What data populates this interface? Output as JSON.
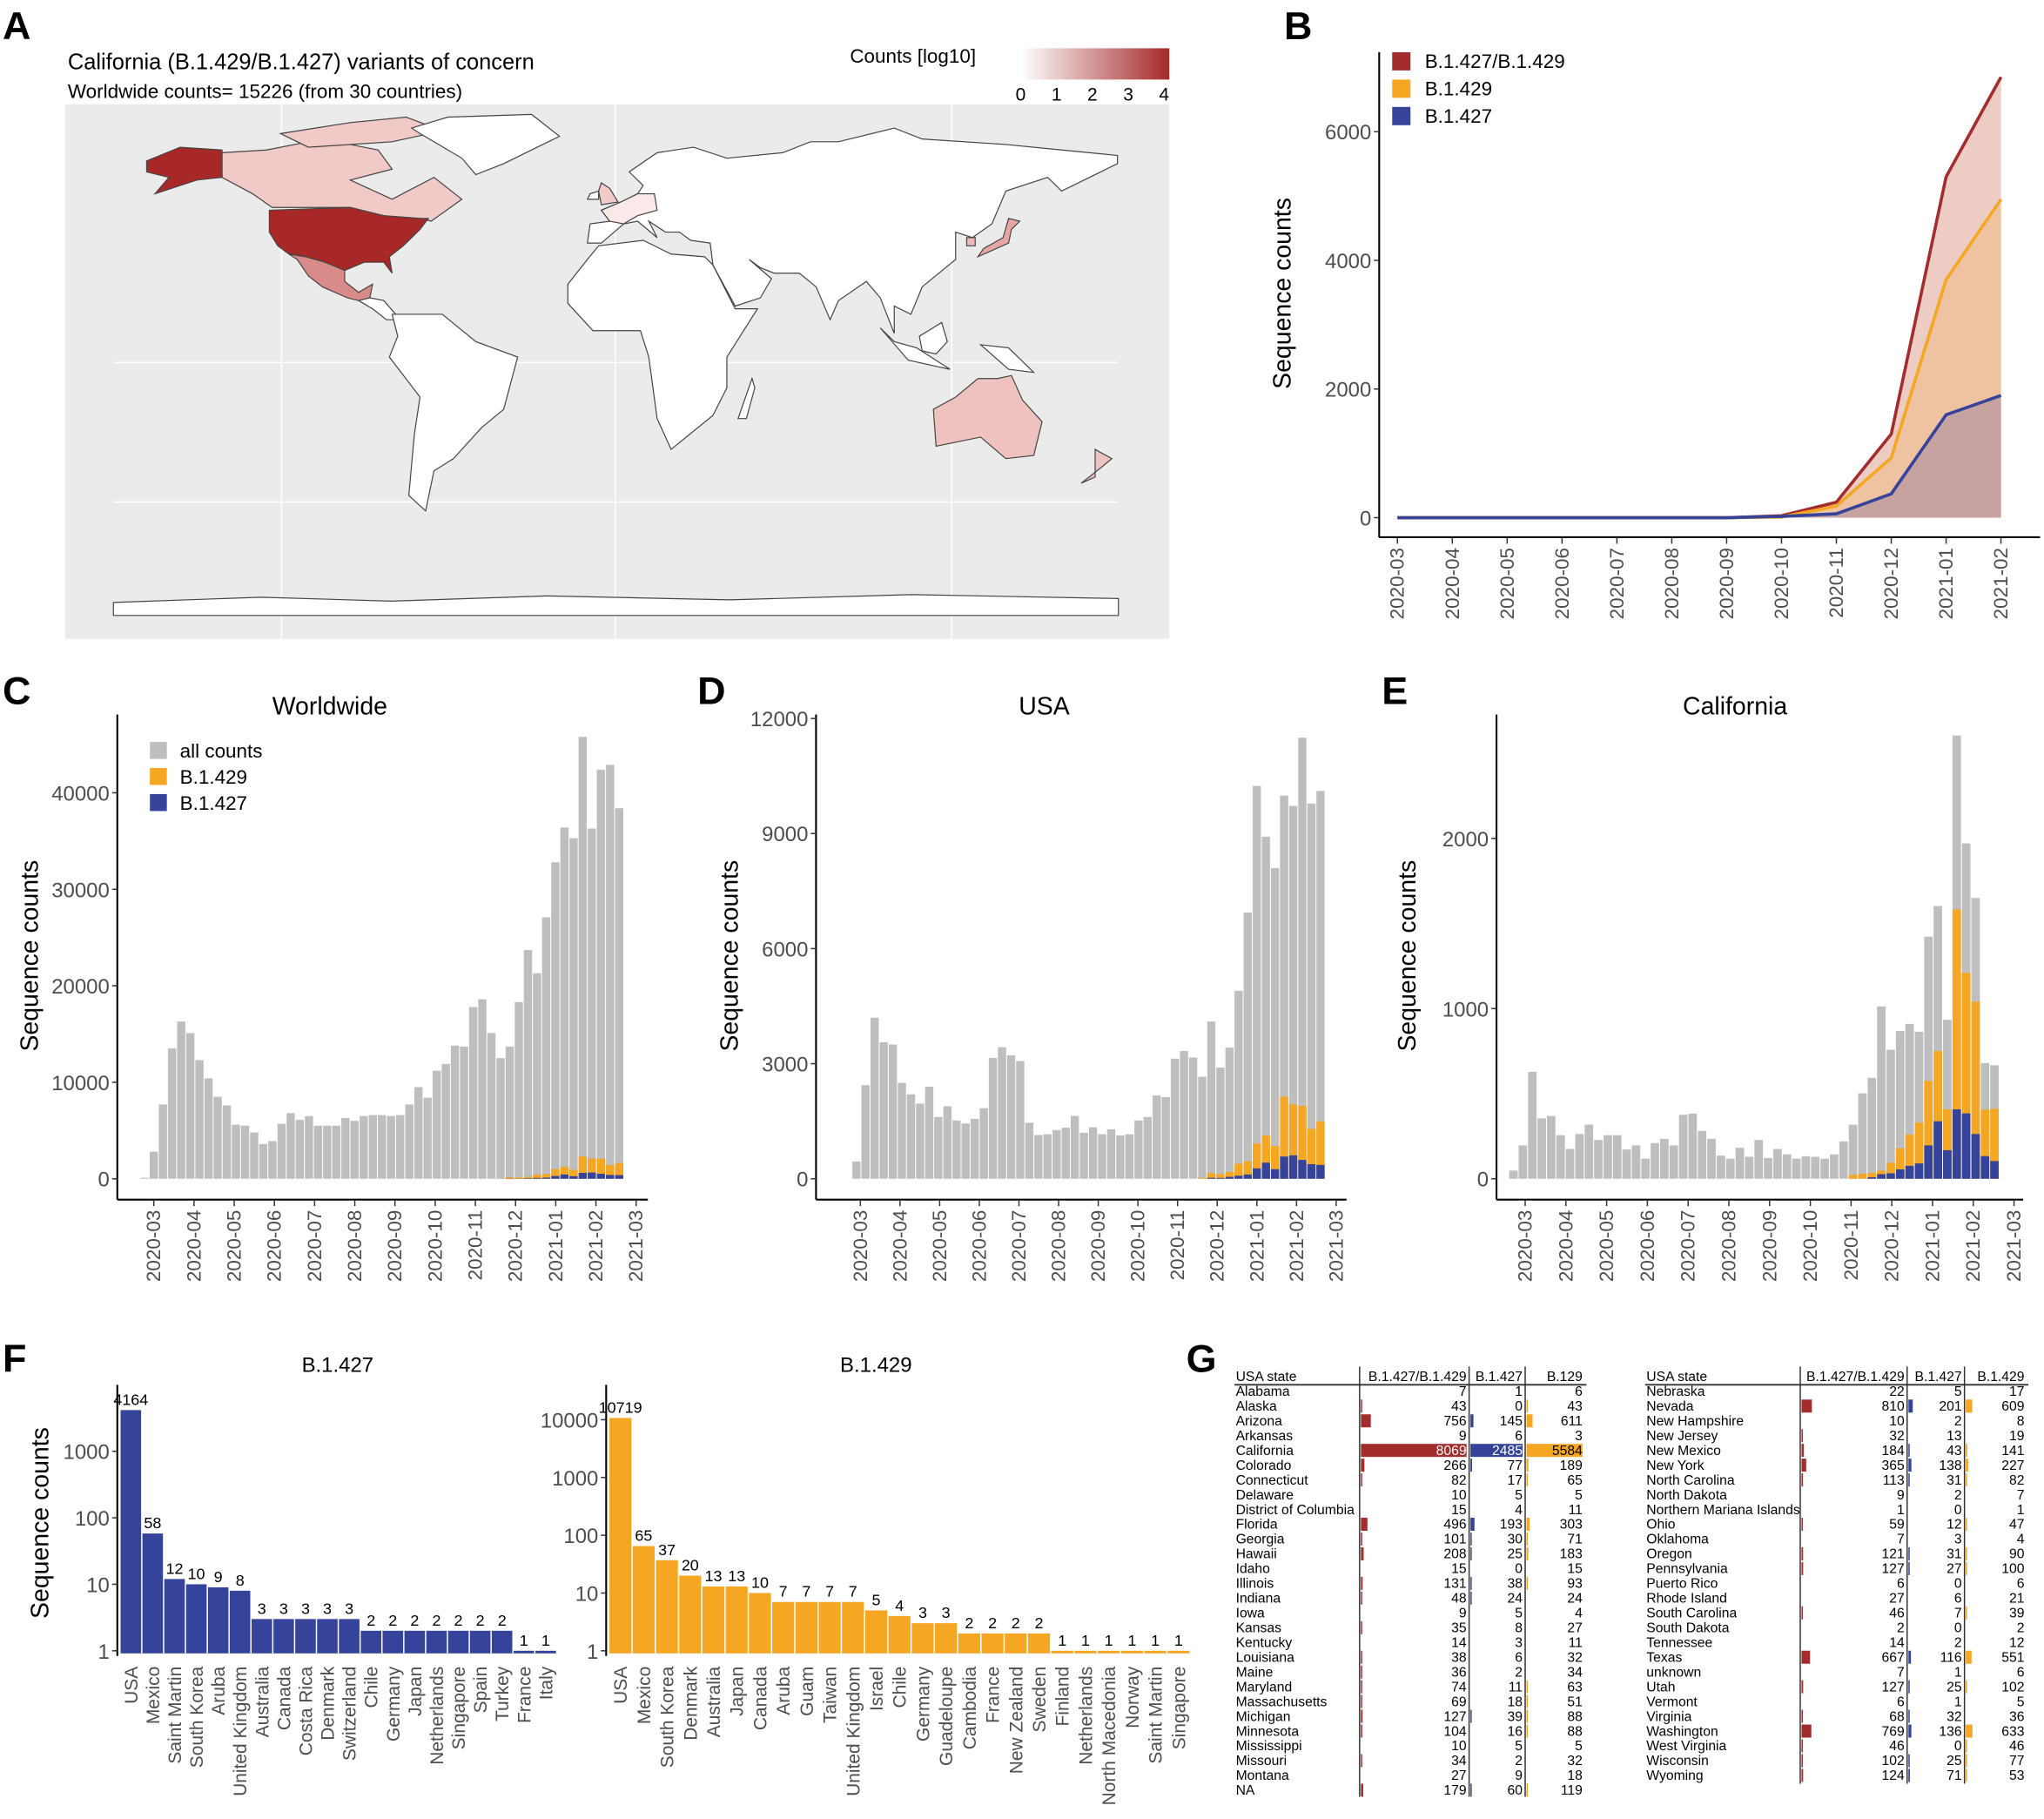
{
  "panel_labels": [
    "A",
    "B",
    "C",
    "D",
    "E",
    "F",
    "G"
  ],
  "colors": {
    "all_counts": "#bebebe",
    "b1429": "#f5a623",
    "b1427": "#35449a",
    "combined": "#a32d2d",
    "map_bg": "#ebebeb"
  },
  "panel_a": {
    "title": "California (B.1.429/B.1.427) variants of concern",
    "subtitle": "Worldwide counts=  15226 (from 30 countries)",
    "legend_title": "Counts [log10]",
    "legend_ticks": [
      "0",
      "1",
      "2",
      "3",
      "4"
    ],
    "legend_colors": [
      "#ffffff",
      "#a52a2a"
    ],
    "fills": {
      "USA": "#a82828",
      "Canada": "#f1c9c7",
      "Mexico": "#d98b89",
      "Australia": "#efc2c0",
      "Japan": "#e7a6a4",
      "United Kingdom": "#f1cbca",
      "South Korea": "#eeb9b7",
      "Europe": "#fbe9e9",
      "other": "#ffffff"
    }
  },
  "chart_data": [
    {
      "panel": "B",
      "type": "area",
      "x": [
        "2020-03",
        "2020-04",
        "2020-05",
        "2020-06",
        "2020-07",
        "2020-08",
        "2020-09",
        "2020-10",
        "2020-11",
        "2020-12",
        "2021-01",
        "2021-02"
      ],
      "ylabel": "Sequence counts",
      "yticks": [
        0,
        2000,
        4000,
        6000
      ],
      "ylim": [
        0,
        7000
      ],
      "legend": "top-left",
      "series": [
        {
          "name": "B.1.427/B.1.429",
          "color": "#a32d2d",
          "values": [
            0,
            0,
            0,
            0,
            0,
            0,
            0,
            30,
            240,
            1300,
            5300,
            6850
          ]
        },
        {
          "name": "B.1.429",
          "color": "#f5a623",
          "values": [
            0,
            0,
            0,
            0,
            0,
            0,
            0,
            10,
            180,
            930,
            3700,
            4950
          ]
        },
        {
          "name": "B.1.427",
          "color": "#35449a",
          "values": [
            0,
            0,
            0,
            0,
            0,
            0,
            0,
            20,
            60,
            370,
            1600,
            1900
          ]
        }
      ]
    },
    {
      "panel": "C",
      "type": "bar",
      "title": "Worldwide",
      "ylabel": "Sequence counts",
      "legend": "top-left",
      "x_ticks": [
        "2020-03",
        "2020-04",
        "2020-05",
        "2020-06",
        "2020-07",
        "2020-08",
        "2020-09",
        "2020-10",
        "2020-11",
        "2020-12",
        "2021-01",
        "2021-02",
        "2021-03"
      ],
      "yticks": [
        0,
        10000,
        20000,
        30000,
        40000
      ],
      "series": [
        {
          "name": "all counts",
          "values": [
            100,
            2800,
            7700,
            13500,
            16300,
            15100,
            12300,
            10400,
            8500,
            7600,
            5600,
            5500,
            4800,
            3600,
            3900,
            5700,
            6800,
            6100,
            6500,
            5500,
            5500,
            5500,
            6300,
            6000,
            6500,
            6600,
            6600,
            6500,
            6600,
            7700,
            9500,
            8400,
            11200,
            11900,
            13800,
            13700,
            17800,
            18600,
            15100,
            12500,
            13700,
            18300,
            23700,
            21300,
            27100,
            32800,
            36400,
            35300,
            45800,
            36300,
            42400,
            42900,
            38400
          ]
        },
        {
          "name": "B.1.429",
          "values": [
            0,
            0,
            0,
            0,
            0,
            0,
            0,
            0,
            0,
            0,
            0,
            0,
            0,
            0,
            0,
            0,
            0,
            0,
            0,
            0,
            0,
            0,
            0,
            0,
            0,
            0,
            0,
            0,
            0,
            0,
            0,
            0,
            0,
            0,
            0,
            0,
            0,
            0,
            0,
            28,
            138,
            110,
            143,
            341,
            385,
            715,
            781,
            660,
            1716,
            1463,
            1551,
            1012,
            1254
          ]
        },
        {
          "name": "B.1.427",
          "values": [
            0,
            0,
            0,
            0,
            0,
            0,
            0,
            0,
            0,
            0,
            0,
            0,
            0,
            0,
            0,
            0,
            0,
            0,
            0,
            0,
            0,
            0,
            0,
            0,
            0,
            0,
            0,
            0,
            0,
            0,
            0,
            0,
            0,
            0,
            0,
            0,
            0,
            0,
            0,
            0,
            26,
            20,
            53,
            84,
            116,
            284,
            441,
            263,
            609,
            641,
            515,
            399,
            378
          ]
        }
      ]
    },
    {
      "panel": "D",
      "type": "bar",
      "title": "USA",
      "ylabel": "Sequence counts",
      "x_ticks": [
        "2020-03",
        "2020-04",
        "2020-05",
        "2020-06",
        "2020-07",
        "2020-08",
        "2020-09",
        "2020-10",
        "2020-11",
        "2020-12",
        "2021-01",
        "2021-02",
        "2021-03"
      ],
      "yticks": [
        0,
        3000,
        6000,
        9000,
        12000
      ],
      "series": [
        {
          "name": "all counts",
          "values": [
            0,
            450,
            2440,
            4200,
            3560,
            3500,
            2500,
            2200,
            1960,
            2400,
            1610,
            1890,
            1520,
            1440,
            1560,
            1840,
            3150,
            3430,
            3220,
            3070,
            1460,
            1140,
            1160,
            1270,
            1330,
            1640,
            1200,
            1340,
            1160,
            1290,
            1130,
            1160,
            1520,
            1610,
            2170,
            2130,
            3130,
            3330,
            3160,
            2660,
            4100,
            2900,
            3420,
            4900,
            6940,
            10240,
            8920,
            8100,
            9990,
            9720,
            11500,
            9780,
            10110
          ]
        },
        {
          "name": "B.1.429",
          "values": [
            0,
            0,
            0,
            0,
            0,
            0,
            0,
            0,
            0,
            0,
            0,
            0,
            0,
            0,
            0,
            0,
            0,
            0,
            0,
            0,
            0,
            0,
            0,
            0,
            0,
            0,
            0,
            0,
            0,
            0,
            0,
            0,
            0,
            0,
            0,
            0,
            0,
            0,
            0,
            25,
            125,
            100,
            130,
            310,
            350,
            650,
            710,
            600,
            1560,
            1330,
            1410,
            920,
            1140
          ]
        },
        {
          "name": "B.1.427",
          "values": [
            0,
            0,
            0,
            0,
            0,
            0,
            0,
            0,
            0,
            0,
            0,
            0,
            0,
            0,
            0,
            0,
            0,
            0,
            0,
            0,
            0,
            0,
            0,
            0,
            0,
            0,
            0,
            0,
            0,
            0,
            0,
            0,
            0,
            0,
            0,
            0,
            0,
            0,
            0,
            0,
            25,
            20,
            50,
            80,
            110,
            270,
            420,
            250,
            580,
            610,
            490,
            380,
            360
          ]
        }
      ]
    },
    {
      "panel": "E",
      "type": "bar",
      "title": "California",
      "ylabel": "Sequence counts",
      "x_ticks": [
        "2020-03",
        "2020-04",
        "2020-05",
        "2020-06",
        "2020-07",
        "2020-08",
        "2020-09",
        "2020-10",
        "2020-11",
        "2020-12",
        "2021-01",
        "2021-02",
        "2021-03"
      ],
      "yticks": [
        0,
        1000,
        2000
      ],
      "series": [
        {
          "name": "all counts",
          "values": [
            48,
            196,
            628,
            355,
            369,
            256,
            175,
            263,
            318,
            228,
            256,
            256,
            172,
            196,
            118,
            210,
            235,
            196,
            376,
            383,
            281,
            235,
            136,
            118,
            182,
            129,
            228,
            122,
            175,
            143,
            118,
            132,
            129,
            118,
            143,
            219,
            318,
            502,
            593,
            1013,
            758,
            868,
            910,
            864,
            1423,
            1603,
            934,
            2605,
            1971,
            1650,
            680,
            667
          ]
        },
        {
          "name": "B.1.429",
          "values": [
            0,
            0,
            0,
            0,
            0,
            0,
            0,
            0,
            0,
            0,
            0,
            0,
            0,
            0,
            0,
            0,
            0,
            0,
            0,
            0,
            0,
            0,
            0,
            0,
            0,
            0,
            0,
            0,
            0,
            0,
            0,
            0,
            0,
            0,
            0,
            0,
            23,
            30,
            25,
            21,
            62,
            124,
            184,
            240,
            379,
            413,
            240,
            1174,
            827,
            778,
            272,
            308
          ]
        },
        {
          "name": "B.1.427",
          "values": [
            0,
            0,
            0,
            0,
            0,
            0,
            0,
            0,
            0,
            0,
            0,
            0,
            0,
            0,
            0,
            0,
            0,
            0,
            0,
            0,
            0,
            0,
            0,
            0,
            0,
            0,
            0,
            0,
            0,
            0,
            0,
            0,
            0,
            0,
            0,
            0,
            0,
            0,
            9,
            27,
            32,
            55,
            76,
            90,
            196,
            338,
            168,
            408,
            384,
            263,
            133,
            104
          ]
        }
      ]
    },
    {
      "panel": "F",
      "type": "bar",
      "title": "B.1.427",
      "ylabel": "Sequence counts",
      "yscale": "log10",
      "yticks": [
        1,
        10,
        100,
        1000
      ],
      "color": "#35449a",
      "categories": [
        "USA",
        "Mexico",
        "Saint Martin",
        "South Korea",
        "Aruba",
        "United Kingdom",
        "Australia",
        "Canada",
        "Costa Rica",
        "Denmark",
        "Switzerland",
        "Chile",
        "Germany",
        "Japan",
        "Netherlands",
        "Singapore",
        "Spain",
        "Turkey",
        "France",
        "Italy"
      ],
      "values": [
        4164,
        58,
        12,
        10,
        9,
        8,
        3,
        3,
        3,
        3,
        3,
        2,
        2,
        2,
        2,
        2,
        2,
        2,
        1,
        1
      ]
    },
    {
      "type": "bar",
      "title": "B.1.429",
      "yscale": "log10",
      "yticks": [
        1,
        10,
        100,
        1000,
        10000
      ],
      "color": "#f5a623",
      "categories": [
        "USA",
        "Mexico",
        "South Korea",
        "Denmark",
        "Australia",
        "Japan",
        "Canada",
        "Aruba",
        "Guam",
        "Taiwan",
        "United Kingdom",
        "Israel",
        "Chile",
        "Germany",
        "Guadeloupe",
        "Cambodia",
        "France",
        "New Zealand",
        "Sweden",
        "Finland",
        "Netherlands",
        "North Macedonia",
        "Norway",
        "Saint Martin",
        "Singapore"
      ],
      "values": [
        10719,
        65,
        37,
        20,
        13,
        13,
        10,
        7,
        7,
        7,
        7,
        5,
        4,
        3,
        3,
        2,
        2,
        2,
        2,
        1,
        1,
        1,
        1,
        1,
        1
      ]
    }
  ],
  "panel_g": {
    "left": {
      "headers": [
        "USA state",
        "B.1.427/B.1.429",
        "B.1.427",
        "B.129"
      ],
      "rows": [
        [
          "Alabama",
          7,
          1,
          6
        ],
        [
          "Alaska",
          43,
          0,
          43
        ],
        [
          "Arizona",
          756,
          145,
          611
        ],
        [
          "Arkansas",
          9,
          6,
          3
        ],
        [
          "California",
          8069,
          2485,
          5584
        ],
        [
          "Colorado",
          266,
          77,
          189
        ],
        [
          "Connecticut",
          82,
          17,
          65
        ],
        [
          "Delaware",
          10,
          5,
          5
        ],
        [
          "District of Columbia",
          15,
          4,
          11
        ],
        [
          "Florida",
          496,
          193,
          303
        ],
        [
          "Georgia",
          101,
          30,
          71
        ],
        [
          "Hawaii",
          208,
          25,
          183
        ],
        [
          "Idaho",
          15,
          0,
          15
        ],
        [
          "Illinois",
          131,
          38,
          93
        ],
        [
          "Indiana",
          48,
          24,
          24
        ],
        [
          "Iowa",
          9,
          5,
          4
        ],
        [
          "Kansas",
          35,
          8,
          27
        ],
        [
          "Kentucky",
          14,
          3,
          11
        ],
        [
          "Louisiana",
          38,
          6,
          32
        ],
        [
          "Maine",
          36,
          2,
          34
        ],
        [
          "Maryland",
          74,
          11,
          63
        ],
        [
          "Massachusetts",
          69,
          18,
          51
        ],
        [
          "Michigan",
          127,
          39,
          88
        ],
        [
          "Minnesota",
          104,
          16,
          88
        ],
        [
          "Mississippi",
          10,
          5,
          5
        ],
        [
          "Missouri",
          34,
          2,
          32
        ],
        [
          "Montana",
          27,
          9,
          18
        ],
        [
          "NA",
          179,
          60,
          119
        ]
      ]
    },
    "right": {
      "headers": [
        "USA state",
        "B.1.427/B.1.429",
        "B.1.427",
        "B.1.429"
      ],
      "rows": [
        [
          "Nebraska",
          22,
          5,
          17
        ],
        [
          "Nevada",
          810,
          201,
          609
        ],
        [
          "New Hampshire",
          10,
          2,
          8
        ],
        [
          "New Jersey",
          32,
          13,
          19
        ],
        [
          "New Mexico",
          184,
          43,
          141
        ],
        [
          "New York",
          365,
          138,
          227
        ],
        [
          "North Carolina",
          113,
          31,
          82
        ],
        [
          "North Dakota",
          9,
          2,
          7
        ],
        [
          "Northern Mariana Islands",
          1,
          0,
          1
        ],
        [
          "Ohio",
          59,
          12,
          47
        ],
        [
          "Oklahoma",
          7,
          3,
          4
        ],
        [
          "Oregon",
          121,
          31,
          90
        ],
        [
          "Pennsylvania",
          127,
          27,
          100
        ],
        [
          "Puerto Rico",
          6,
          0,
          6
        ],
        [
          "Rhode Island",
          27,
          6,
          21
        ],
        [
          "South Carolina",
          46,
          7,
          39
        ],
        [
          "South Dakota",
          2,
          0,
          2
        ],
        [
          "Tennessee",
          14,
          2,
          12
        ],
        [
          "Texas",
          667,
          116,
          551
        ],
        [
          "unknown",
          7,
          1,
          6
        ],
        [
          "Utah",
          127,
          25,
          102
        ],
        [
          "Vermont",
          6,
          1,
          5
        ],
        [
          "Virginia",
          68,
          32,
          36
        ],
        [
          "Washington",
          769,
          136,
          633
        ],
        [
          "West Virginia",
          46,
          0,
          46
        ],
        [
          "Wisconsin",
          102,
          25,
          77
        ],
        [
          "Wyoming",
          124,
          71,
          53
        ]
      ]
    }
  }
}
